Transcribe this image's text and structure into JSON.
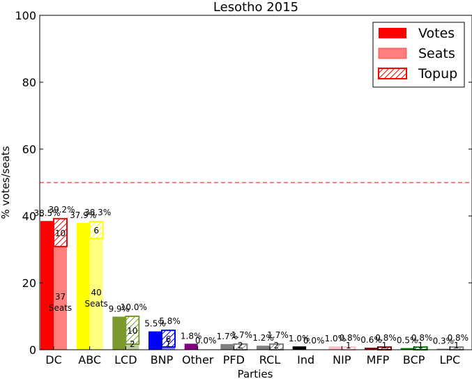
{
  "chart_data": {
    "type": "bar",
    "title": "Lesotho 2015",
    "xlabel": "Parties",
    "ylabel": "% votes/seats",
    "ylim": [
      0,
      100
    ],
    "yticks": [
      0,
      20,
      40,
      60,
      80,
      100
    ],
    "majority_line": 50,
    "grid": false,
    "legend_position": "top-right",
    "legend": [
      {
        "name": "Votes",
        "style": "solid"
      },
      {
        "name": "Seats",
        "style": "light"
      },
      {
        "name": "Topup",
        "style": "hatched"
      }
    ],
    "categories": [
      "DC",
      "ABC",
      "LCD",
      "BNP",
      "Other",
      "PFD",
      "RCL",
      "Ind",
      "NIP",
      "MFP",
      "BCP",
      "LPC"
    ],
    "colors": [
      "#ff0000",
      "#ffff00",
      "#7a9a2e",
      "#0000ff",
      "#800080",
      "#808080",
      "#808080",
      "#000000",
      "#ffc0cb",
      "#8b0000",
      "#008000",
      "#808080"
    ],
    "series": [
      {
        "name": "Votes",
        "values": [
          38.5,
          37.9,
          9.9,
          5.5,
          1.8,
          1.7,
          1.2,
          1.0,
          1.0,
          0.6,
          0.5,
          0.3
        ]
      },
      {
        "name": "Seats",
        "values": [
          39.2,
          38.3,
          10.0,
          5.8,
          0.0,
          1.7,
          1.7,
          0.0,
          0.8,
          0.8,
          0.8,
          0.8
        ]
      }
    ],
    "vote_labels": [
      "38.5%",
      "37.9%",
      "9.9%",
      "5.5%",
      "1.8%",
      "1.7%",
      "1.2%",
      "1.0%",
      "1.0%",
      "0.6%",
      "0.5%",
      "0.3%"
    ],
    "seat_labels": [
      "39.2%",
      "38.3%",
      "10.0%",
      "5.8%",
      "0.0%",
      "1.7%",
      "1.7%",
      "0.0%",
      "0.8%",
      "0.8%",
      "0.8%",
      "0.8%"
    ],
    "constituency_seats": [
      37,
      40,
      2,
      1,
      0,
      0,
      0,
      0,
      0,
      0,
      0,
      0
    ],
    "topup_seats": [
      10,
      6,
      10,
      6,
      0,
      2,
      2,
      0,
      1,
      1,
      1,
      1
    ],
    "seats_word": "Seats"
  }
}
